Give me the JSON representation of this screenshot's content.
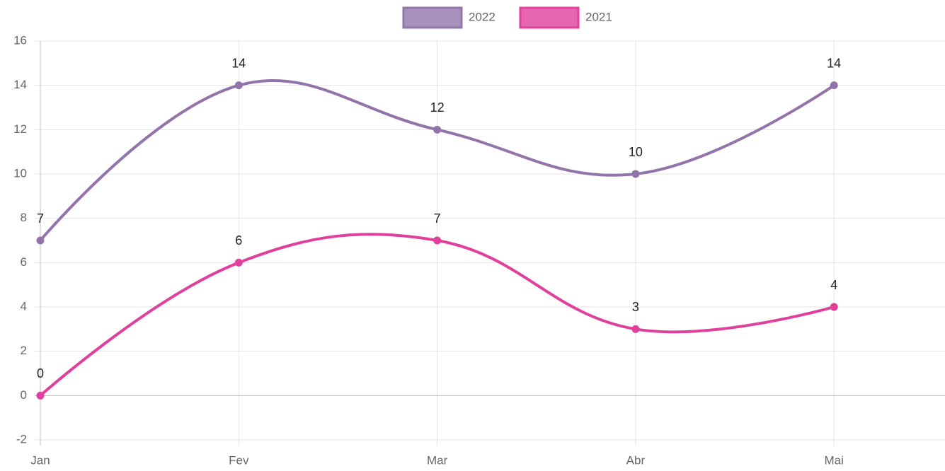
{
  "chart_data": {
    "type": "line",
    "categories": [
      "Jan",
      "Fev",
      "Mar",
      "Abr",
      "Mai"
    ],
    "series": [
      {
        "name": "2022",
        "color": "#9274ab",
        "values": [
          7,
          14,
          12,
          10,
          14
        ]
      },
      {
        "name": "2021",
        "color": "#e0409b",
        "values": [
          0,
          6,
          7,
          3,
          4
        ]
      }
    ],
    "ylim": [
      -2,
      16
    ],
    "yticks": [
      -2,
      0,
      2,
      4,
      6,
      8,
      10,
      12,
      14,
      16
    ],
    "grid": true,
    "legend": "top",
    "smooth": true,
    "data_labels": true
  }
}
